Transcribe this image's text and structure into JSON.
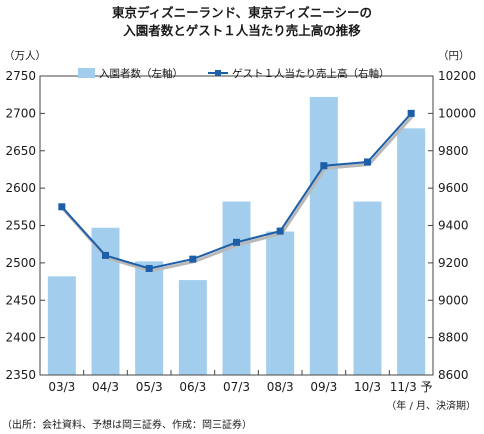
{
  "chart_data": {
    "type": "bar",
    "title_lines": [
      "東京ディズニーランド、東京ディズニーシーの",
      "入園者数とゲスト１人当たり売上高の推移"
    ],
    "left_unit": "（万人）",
    "right_unit": "（円）",
    "categories": [
      "03/3",
      "04/3",
      "05/3",
      "06/3",
      "07/3",
      "08/3",
      "09/3",
      "10/3",
      "11/3 予"
    ],
    "x_note": "（年 / 月、決済期）",
    "source": "（出所：会社資料、予想は岡三証券、作成：岡三証券）",
    "left_axis": {
      "min": 2350,
      "max": 2750,
      "ticks": [
        "2350",
        "2400",
        "2450",
        "2500",
        "2550",
        "2600",
        "2650",
        "2700",
        "2750"
      ]
    },
    "right_axis": {
      "min": 8600,
      "max": 10200,
      "ticks": [
        "8600",
        "8800",
        "9000",
        "9200",
        "9400",
        "9600",
        "9800",
        "10000",
        "10200"
      ]
    },
    "series": [
      {
        "name": "入園者数（左軸）",
        "type": "bar",
        "axis": "left",
        "color": "#a3cdec",
        "values": [
          2482,
          2547,
          2502,
          2477,
          2582,
          2542,
          2722,
          2582,
          2680
        ]
      },
      {
        "name": "ゲスト１人当たり売上高（右軸）",
        "type": "line",
        "axis": "right",
        "color": "#1d5ea8",
        "values": [
          9500,
          9240,
          9170,
          9220,
          9310,
          9370,
          9720,
          9740,
          10000
        ]
      }
    ],
    "grid": false,
    "legend_position": "top"
  }
}
